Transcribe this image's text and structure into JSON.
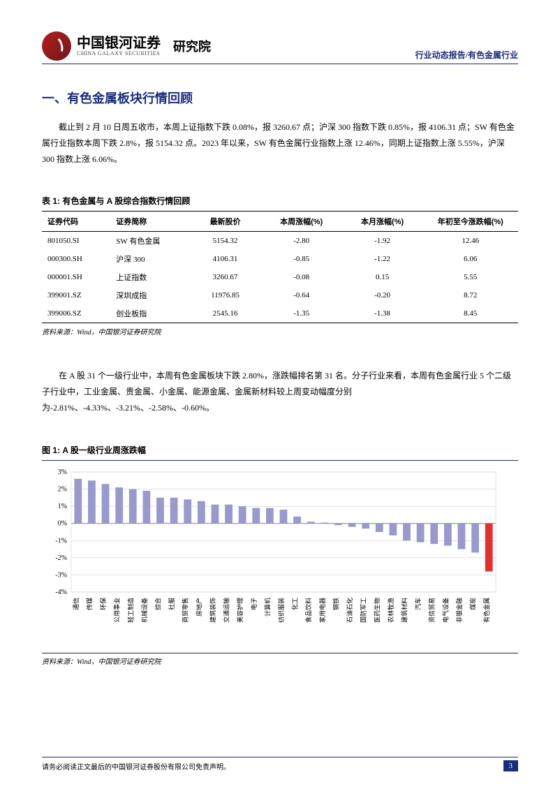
{
  "header": {
    "company_cn": "中国银河证券",
    "company_en": "CHINA GALAXY SECURITIES",
    "department": "研究院",
    "doc_type": "行业动态报告/有色金属行业"
  },
  "section_title": "一、有色金属板块行情回顾",
  "paragraph1": "截止到 2 月 10 日周五收市，本周上证指数下跌 0.08%，报 3260.67 点；沪深 300 指数下跌 0.85%，报 4106.31 点；SW 有色金属行业指数本周下跌 2.8%，报 5154.32 点。2023 年以来，SW 有色金属行业指数上涨 12.46%，同期上证指数上涨 5.55%，沪深 300 指数上涨 6.06%。",
  "table1": {
    "title": "表 1: 有色金属与 A 股综合指数行情回顾",
    "columns": [
      "证券代码",
      "证券简称",
      "最新股价",
      "本周涨幅(%)",
      "本月涨幅(%)",
      "年初至今涨跌幅(%)"
    ],
    "rows": [
      [
        "801050.SI",
        "SW 有色金属",
        "5154.32",
        "-2.80",
        "-1.92",
        "12.46"
      ],
      [
        "000300.SH",
        "沪深 300",
        "4106.31",
        "-0.85",
        "-1.22",
        "6.06"
      ],
      [
        "000001.SH",
        "上证指数",
        "3260.67",
        "-0.08",
        "0.15",
        "5.55"
      ],
      [
        "399001.SZ",
        "深圳成指",
        "11976.85",
        "-0.64",
        "-0.20",
        "8.72"
      ],
      [
        "399006.SZ",
        "创业板指",
        "2545.16",
        "-1.35",
        "-1.38",
        "8.45"
      ]
    ],
    "source": "资料来源：Wind，中国银河证券研究院"
  },
  "paragraph2": "在 A 股 31 个一级行业中，本周有色金属板块下跌 2.80%，涨跌幅排名第 31 名。分子行业来看，本周有色金属行业 5 个二级子行业中，工业金属、贵金属、小金属、能源金属、金属新材料较上周变动幅度分别为-2.81%、-4.33%、-3.21%、-2.58%、-0.60%。",
  "chart1": {
    "title": "图 1:  A 股一级行业周涨跌幅",
    "type": "bar",
    "ylim": [
      -4,
      3
    ],
    "ytick_step": 1,
    "ytick_suffix": "%",
    "grid_color": "#d0d0d0",
    "bar_color_default": "#9999cc",
    "bar_color_highlight": "#e03030",
    "background_color": "#ffffff",
    "label_fontsize": 9,
    "categories": [
      "通信",
      "传媒",
      "环保",
      "公用事业",
      "轻工制造",
      "机械设备",
      "综合",
      "社服",
      "商贸零售",
      "房地产",
      "建筑装饰",
      "交通运输",
      "美容护理",
      "电子",
      "计算机",
      "纺织服装",
      "化工",
      "食品饮料",
      "家用电器",
      "钢铁",
      "石油石化",
      "国防军工",
      "医药生物",
      "农林牧渔",
      "建筑材料",
      "汽车",
      "资信贸易",
      "电气设备",
      "非银金融",
      "煤炭",
      "有色金属"
    ],
    "values": [
      2.6,
      2.5,
      2.3,
      2.1,
      2.0,
      1.9,
      1.5,
      1.5,
      1.4,
      1.3,
      1.1,
      1.1,
      1.0,
      0.9,
      0.9,
      0.8,
      0.4,
      0.1,
      0.05,
      -0.1,
      -0.2,
      -0.3,
      -0.5,
      -0.7,
      -1.0,
      -1.1,
      -1.2,
      -1.3,
      -1.5,
      -1.7,
      -2.8
    ],
    "highlight_index": 30,
    "source": "资料来源：Wind，中国银河证券研究院"
  },
  "footer": {
    "disclaimer": "请务必阅读正文最后的中国银河证券股份有限公司免责声明。",
    "page_number": "3"
  }
}
